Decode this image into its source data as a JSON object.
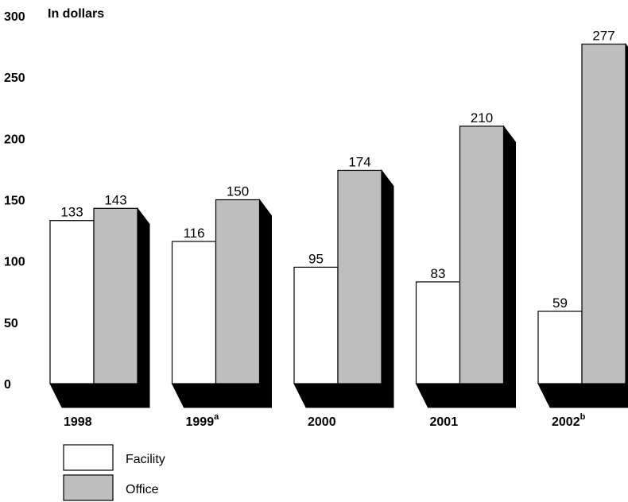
{
  "chart_data": {
    "type": "bar",
    "unit_label": "In dollars",
    "categories": [
      "1998",
      "1999",
      "2000",
      "2001",
      "2002"
    ],
    "category_superscripts": [
      "",
      "a",
      "",
      "",
      "b"
    ],
    "series": [
      {
        "name": "Facility",
        "values": [
          133,
          116,
          95,
          83,
          59
        ],
        "color": "#ffffff"
      },
      {
        "name": "Office",
        "values": [
          143,
          150,
          174,
          210,
          277
        ],
        "color": "#bebebe"
      }
    ],
    "ylim": [
      0,
      300
    ],
    "y_ticks": [
      0,
      50,
      100,
      150,
      200,
      250,
      300
    ],
    "shadow_color": "#000000",
    "legend_position": "bottom-left",
    "grid": false
  }
}
